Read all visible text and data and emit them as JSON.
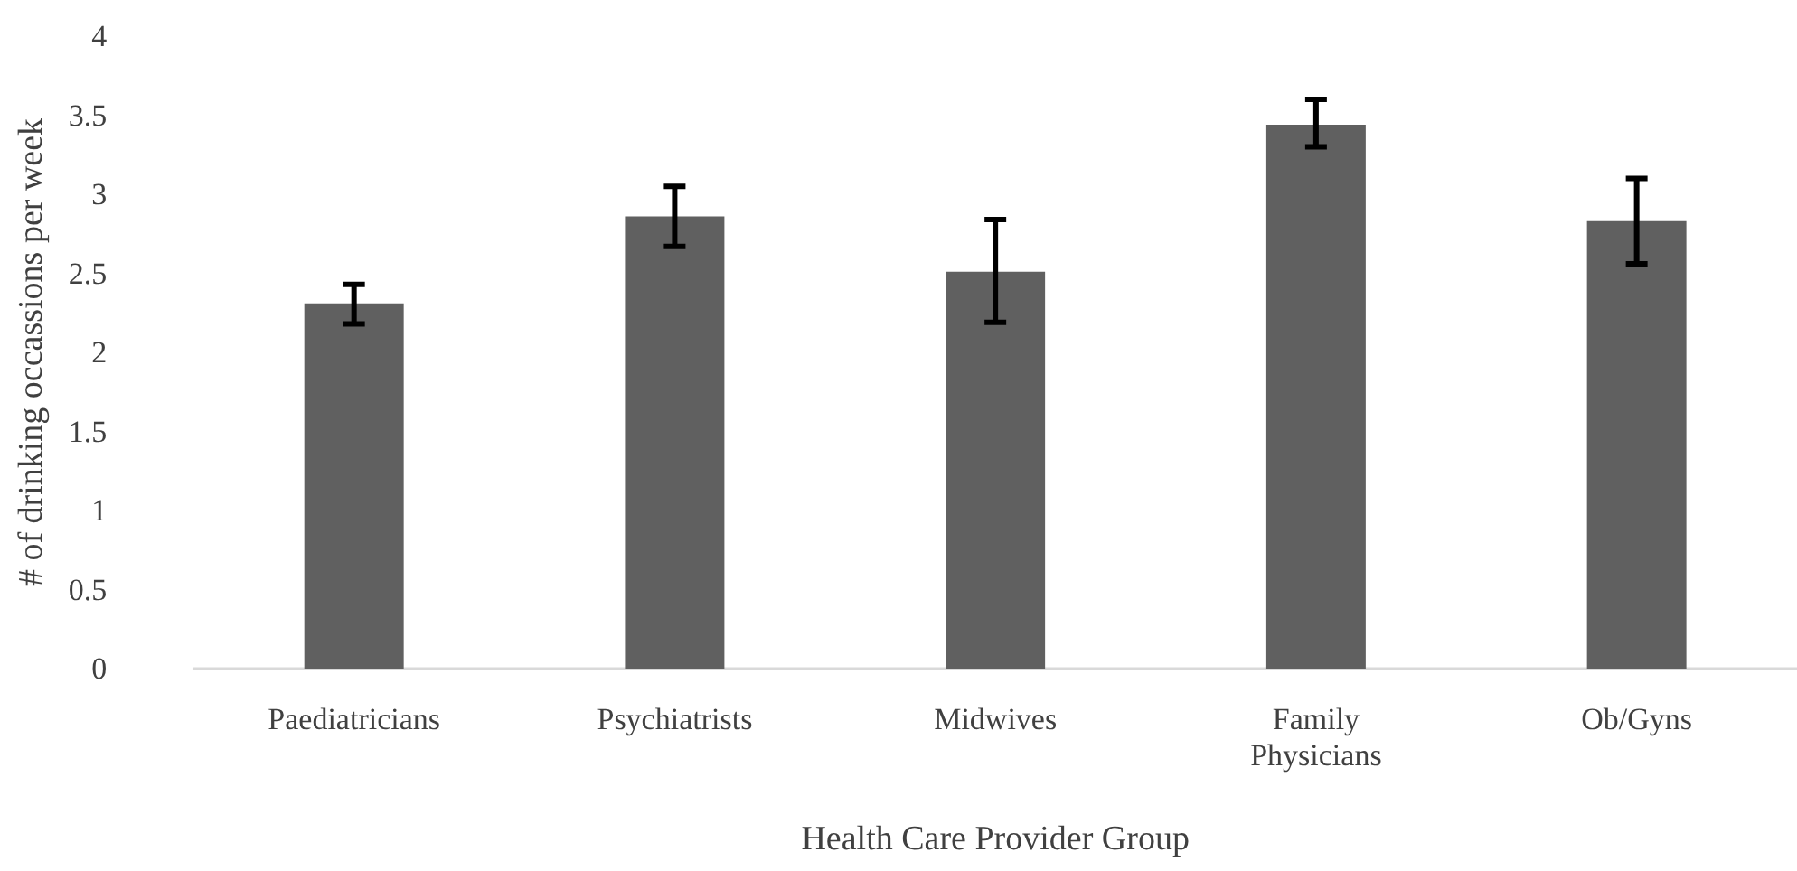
{
  "chart_data": {
    "type": "bar",
    "xlabel": "Health Care Provider Group",
    "ylabel": "# of drinking occassions per week",
    "categories": [
      "Paediatricians",
      "Psychiatrists",
      "Midwives",
      "Family\nPhysicians",
      "Ob/Gyns"
    ],
    "values": [
      2.31,
      2.86,
      2.51,
      3.44,
      2.83
    ],
    "color": "#606060",
    "errors": [
      [
        2.18,
        2.43
      ],
      [
        2.67,
        3.05
      ],
      [
        2.19,
        2.84
      ],
      [
        3.3,
        3.6
      ],
      [
        2.56,
        3.1
      ]
    ],
    "ylim": [
      0,
      4
    ],
    "yticks": [
      0,
      0.5,
      1,
      1.5,
      2,
      2.5,
      3,
      3.5,
      4
    ],
    "grid": false
  }
}
